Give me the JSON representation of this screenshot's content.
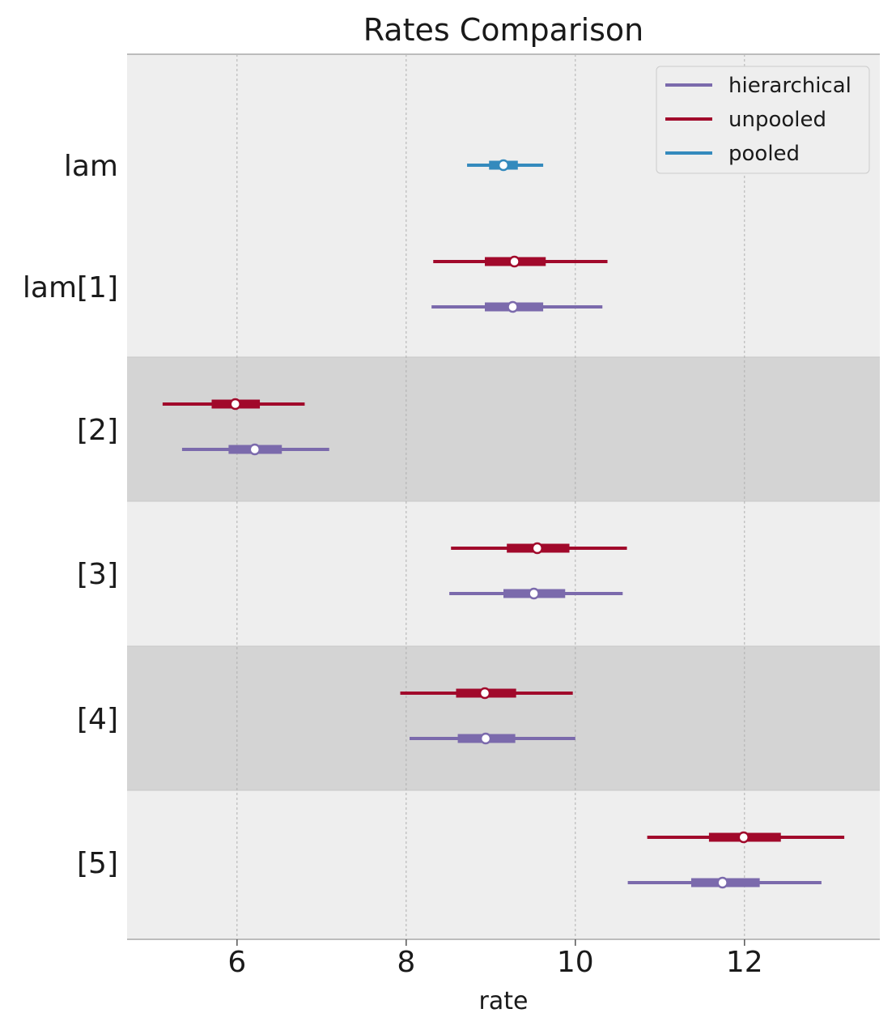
{
  "chart_data": {
    "type": "forest",
    "title": "Rates Comparison",
    "xlabel": "rate",
    "xlim": [
      4.7,
      13.6
    ],
    "xticks": [
      6,
      8,
      10,
      12
    ],
    "grid": "vertical-dashed",
    "legend_position": "top-right",
    "series_colors": {
      "hierarchical": "#7b6aac",
      "unpooled": "#a1092b",
      "pooled": "#348abd"
    },
    "legend": [
      {
        "name": "hierarchical",
        "color": "#7b6aac"
      },
      {
        "name": "unpooled",
        "color": "#a1092b"
      },
      {
        "name": "pooled",
        "color": "#348abd"
      }
    ],
    "band_colors": {
      "light": "#eeeeee",
      "dark": "#d4d4d4"
    },
    "rows": [
      {
        "label": "lam",
        "band": "light",
        "entries": [
          {
            "series": "pooled",
            "mean": 9.15,
            "hdi_low": 8.72,
            "hdi_high": 9.62,
            "iqr_low": 8.98,
            "iqr_high": 9.32
          }
        ]
      },
      {
        "label": "lam[1]",
        "band": "light",
        "entries": [
          {
            "series": "unpooled",
            "mean": 9.28,
            "hdi_low": 8.32,
            "hdi_high": 10.38,
            "iqr_low": 8.93,
            "iqr_high": 9.65
          },
          {
            "series": "hierarchical",
            "mean": 9.26,
            "hdi_low": 8.3,
            "hdi_high": 10.32,
            "iqr_low": 8.93,
            "iqr_high": 9.62
          }
        ]
      },
      {
        "label": "[2]",
        "band": "dark",
        "entries": [
          {
            "series": "unpooled",
            "mean": 5.98,
            "hdi_low": 5.12,
            "hdi_high": 6.8,
            "iqr_low": 5.7,
            "iqr_high": 6.27
          },
          {
            "series": "hierarchical",
            "mean": 6.21,
            "hdi_low": 5.35,
            "hdi_high": 7.09,
            "iqr_low": 5.9,
            "iqr_high": 6.53
          }
        ]
      },
      {
        "label": "[3]",
        "band": "light",
        "entries": [
          {
            "series": "unpooled",
            "mean": 9.55,
            "hdi_low": 8.53,
            "hdi_high": 10.61,
            "iqr_low": 9.19,
            "iqr_high": 9.93
          },
          {
            "series": "hierarchical",
            "mean": 9.51,
            "hdi_low": 8.51,
            "hdi_high": 10.56,
            "iqr_low": 9.15,
            "iqr_high": 9.88
          }
        ]
      },
      {
        "label": "[4]",
        "band": "dark",
        "entries": [
          {
            "series": "unpooled",
            "mean": 8.93,
            "hdi_low": 7.93,
            "hdi_high": 9.97,
            "iqr_low": 8.59,
            "iqr_high": 9.3
          },
          {
            "series": "hierarchical",
            "mean": 8.94,
            "hdi_low": 8.04,
            "hdi_high": 10.0,
            "iqr_low": 8.61,
            "iqr_high": 9.29
          }
        ]
      },
      {
        "label": "[5]",
        "band": "light",
        "entries": [
          {
            "series": "unpooled",
            "mean": 11.99,
            "hdi_low": 10.85,
            "hdi_high": 13.18,
            "iqr_low": 11.58,
            "iqr_high": 12.43
          },
          {
            "series": "hierarchical",
            "mean": 11.74,
            "hdi_low": 10.62,
            "hdi_high": 12.91,
            "iqr_low": 11.37,
            "iqr_high": 12.18
          }
        ]
      }
    ]
  }
}
